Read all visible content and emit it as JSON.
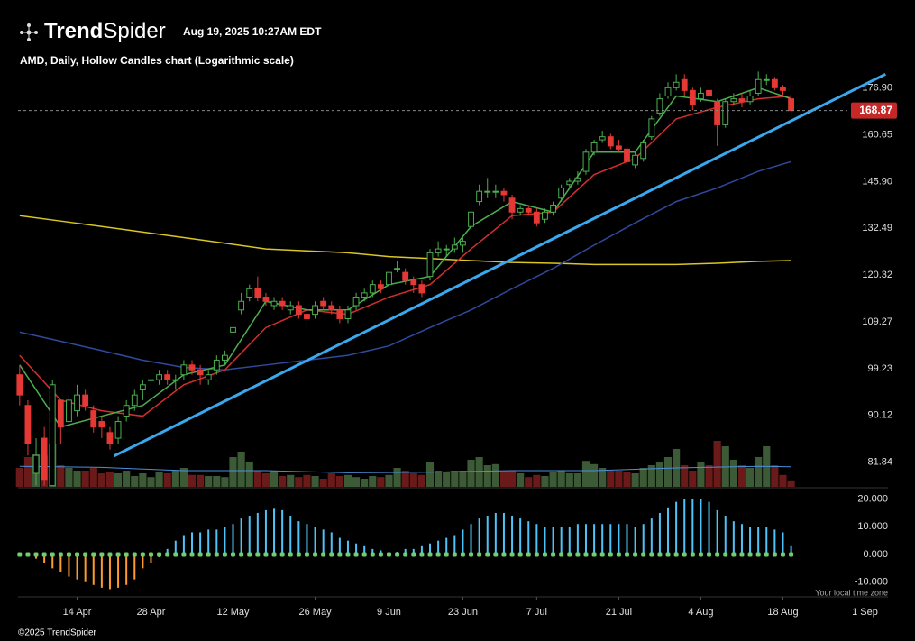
{
  "header": {
    "brand_bold": "Trend",
    "brand_light": "Spider",
    "timestamp": "Aug 19, 2025 10:27AM EDT"
  },
  "footer": {
    "copyright": "©2025 TrendSpider",
    "timezone_note": "Your local time zone"
  },
  "chart_data": {
    "type": "candlestick",
    "title": "AMD, Daily, Hollow Candles chart (Logarithmic scale)",
    "log_scale": true,
    "xlim": [
      -0.2,
      105.8
    ],
    "xticks": [
      {
        "value": 7,
        "label": "14 Apr"
      },
      {
        "value": 16,
        "label": "28 Apr"
      },
      {
        "value": 26,
        "label": "12 May"
      },
      {
        "value": 36,
        "label": "26 May"
      },
      {
        "value": 45,
        "label": "9 Jun"
      },
      {
        "value": 54,
        "label": "23 Jun"
      },
      {
        "value": 63,
        "label": "7 Jul"
      },
      {
        "value": 73,
        "label": "21 Jul"
      },
      {
        "value": 83,
        "label": "4 Aug"
      },
      {
        "value": 93,
        "label": "18 Aug"
      },
      {
        "value": 103,
        "label": "1 Sep"
      }
    ],
    "ylim": [
      77.8,
      189.7
    ],
    "yticks": [
      {
        "value": 176.9,
        "label": "176.90"
      },
      160.65,
      {
        "value": 145.9,
        "label": "145.90"
      },
      132.49,
      120.32,
      109.27,
      99.23,
      90.12,
      81.84
    ],
    "up_color": "#4caf50",
    "down_color": "#e53935",
    "last_price_color": "#c62828",
    "candles": {
      "open": [
        98,
        92,
        80,
        86,
        78,
        93,
        89,
        91,
        94,
        91,
        89,
        87,
        86,
        90,
        92,
        95,
        97,
        97,
        98,
        97,
        98,
        100,
        99,
        97,
        99,
        101,
        107,
        112,
        115,
        117,
        115,
        113,
        114,
        112,
        113,
        111,
        111,
        114,
        113,
        112,
        110,
        113,
        115,
        116,
        118,
        118,
        122,
        121,
        119,
        118,
        120,
        126,
        127,
        127,
        128,
        133,
        140,
        143,
        143,
        143,
        141,
        137,
        138,
        137,
        135,
        137,
        141,
        145,
        146,
        149,
        155,
        159,
        160,
        157,
        156,
        151,
        153,
        160,
        168,
        174,
        177,
        180,
        176,
        173,
        176,
        172,
        164,
        172,
        173,
        172,
        175,
        180,
        180,
        177,
        173
      ],
      "high": [
        100,
        93,
        86,
        88,
        97,
        93,
        94,
        96,
        95,
        92,
        90,
        88,
        90,
        93,
        95,
        97,
        98,
        99,
        99,
        98,
        101,
        101,
        100,
        99,
        102,
        103,
        109,
        116,
        118,
        120,
        116,
        115,
        115,
        114,
        114,
        112,
        114,
        115,
        114,
        113,
        113,
        116,
        117,
        119,
        119,
        122,
        124,
        122,
        120,
        119,
        127,
        129,
        128,
        130,
        130,
        138,
        145,
        147,
        145,
        144,
        142,
        139,
        139,
        138,
        138,
        140,
        145,
        147,
        149,
        156,
        159,
        162,
        161,
        159,
        157,
        155,
        159,
        167,
        175,
        179,
        182,
        182,
        177,
        177,
        178,
        173,
        173,
        175,
        175,
        176,
        183,
        182,
        181,
        178,
        174
      ],
      "low": [
        92,
        83,
        78,
        78,
        78,
        85,
        87,
        90,
        91,
        87,
        86,
        84,
        85,
        89,
        91,
        93,
        95,
        96,
        96,
        95,
        97,
        98,
        96,
        96,
        98,
        100,
        105,
        111,
        114,
        114,
        113,
        112,
        112,
        111,
        110,
        108,
        110,
        112,
        111,
        109,
        109,
        112,
        114,
        115,
        116,
        117,
        121,
        118,
        116,
        115,
        119,
        125,
        125,
        126,
        126,
        132,
        139,
        141,
        141,
        140,
        135,
        136,
        136,
        133,
        134,
        136,
        140,
        144,
        145,
        148,
        154,
        158,
        156,
        155,
        149,
        150,
        152,
        159,
        167,
        173,
        176,
        174,
        169,
        172,
        172,
        157,
        163,
        171,
        170,
        171,
        174,
        178,
        176,
        174,
        167
      ],
      "close": [
        94,
        85,
        83,
        79,
        96,
        88,
        93,
        94,
        92,
        88,
        88,
        85,
        89,
        92,
        94,
        96,
        97,
        98,
        97,
        97,
        100,
        99,
        98,
        98,
        101,
        102,
        108,
        114,
        117,
        115,
        114,
        114,
        113,
        113,
        111,
        110,
        113,
        113,
        112,
        110,
        112,
        115,
        116,
        118,
        117,
        121,
        122,
        119,
        118,
        116,
        126,
        127,
        127,
        128,
        129,
        137,
        143,
        143,
        143,
        142,
        137,
        138,
        137,
        134,
        137,
        139,
        144,
        146,
        147,
        155,
        158,
        160,
        157,
        156,
        152,
        154,
        158,
        166,
        173,
        177,
        179,
        176,
        171,
        175,
        174,
        164,
        172,
        173,
        172,
        174,
        180,
        180,
        177,
        176,
        168.87
      ]
    },
    "lines": [
      {
        "color": "#d9c623",
        "x": [
          0,
          5,
          10,
          15,
          20,
          25,
          30,
          35,
          40,
          45,
          50,
          55,
          60,
          65,
          70,
          75,
          80,
          85,
          90,
          94
        ],
        "values": [
          136,
          134.5,
          133,
          131.5,
          130,
          128.5,
          127,
          126.5,
          126,
          125,
          124.5,
          124,
          123.5,
          123.3,
          123,
          123,
          123,
          123.3,
          123.8,
          124
        ]
      },
      {
        "color": "#2f4a9e",
        "x": [
          0,
          5,
          10,
          15,
          20,
          25,
          30,
          35,
          40,
          45,
          50,
          55,
          60,
          65,
          70,
          75,
          80,
          85,
          90,
          94
        ],
        "values": [
          107,
          105,
          103,
          101,
          99.5,
          99,
          100,
          101,
          102,
          104,
          108,
          112,
          117,
          122,
          128,
          134,
          140,
          144,
          149,
          152
        ]
      },
      {
        "color": "#d32f2f",
        "x": [
          0,
          5,
          10,
          15,
          20,
          25,
          30,
          35,
          40,
          45,
          50,
          55,
          60,
          65,
          70,
          75,
          80,
          85,
          90,
          94
        ],
        "values": [
          102,
          93,
          91,
          90,
          96,
          99,
          108,
          112,
          111,
          115,
          118,
          127,
          136,
          137,
          148,
          153,
          166,
          170,
          173,
          174
        ]
      },
      {
        "color": "#4caf50",
        "x": [
          0,
          5,
          10,
          15,
          20,
          25,
          30,
          35,
          40,
          45,
          50,
          55,
          60,
          65,
          70,
          75,
          80,
          85,
          90,
          94
        ],
        "values": [
          100,
          88,
          90,
          92,
          98,
          100,
          114,
          112,
          112,
          118,
          120,
          133,
          140,
          137,
          155,
          155,
          174,
          172,
          177,
          173
        ]
      }
    ],
    "trendline": {
      "color": "#3aa8ee",
      "x": [
        11.5,
        105.5
      ],
      "values": [
        82.9,
        182
      ]
    },
    "volume": {
      "ylim": [
        0,
        150
      ],
      "up_color": "#3d5a36",
      "down_color": "#6b1a1a",
      "values": [
        35,
        55,
        60,
        58,
        80,
        40,
        35,
        30,
        30,
        35,
        25,
        28,
        25,
        30,
        20,
        25,
        18,
        28,
        25,
        30,
        35,
        22,
        22,
        20,
        20,
        18,
        55,
        65,
        45,
        30,
        25,
        30,
        20,
        22,
        18,
        22,
        20,
        15,
        25,
        20,
        22,
        18,
        15,
        20,
        18,
        22,
        35,
        30,
        25,
        22,
        45,
        30,
        28,
        30,
        30,
        50,
        55,
        40,
        42,
        30,
        30,
        25,
        18,
        22,
        20,
        28,
        30,
        25,
        25,
        48,
        42,
        35,
        30,
        30,
        28,
        25,
        35,
        40,
        45,
        55,
        70,
        40,
        30,
        45,
        40,
        85,
        75,
        50,
        40,
        35,
        55,
        75,
        40,
        22,
        12
      ],
      "ma": {
        "color": "#4a90d9",
        "x": [
          0,
          10,
          20,
          30,
          40,
          50,
          60,
          70,
          80,
          90,
          94
        ],
        "values": [
          38,
          36,
          30,
          30,
          26,
          27,
          30,
          30,
          35,
          38,
          37
        ]
      }
    },
    "oscillator": {
      "ylim": [
        -15.3,
        22.8
      ],
      "yticks": [
        {
          "value": 20,
          "label": "20.000"
        },
        {
          "value": 10,
          "label": "10.000"
        },
        {
          "value": 0,
          "label": "0.000"
        },
        {
          "value": -10,
          "label": "-10.000"
        }
      ],
      "pos_color": "#4fc3f7",
      "neg_color": "#ff9a2e",
      "dot_color": "#6fcf6f",
      "values": [
        0,
        -0.5,
        -1.5,
        -3,
        -5,
        -6.5,
        -8,
        -9,
        -10,
        -11,
        -12,
        -12.5,
        -12,
        -11,
        -9,
        -5,
        -3,
        -1,
        2,
        5,
        7,
        8,
        8,
        9,
        9,
        10,
        11,
        13,
        14,
        15,
        16,
        16.5,
        16,
        14,
        12,
        11,
        10,
        9,
        8,
        6,
        5,
        4,
        3,
        2,
        1.5,
        0.5,
        1,
        2,
        2,
        3,
        4,
        5,
        6,
        7,
        9,
        11,
        13,
        14,
        15,
        15,
        14,
        13,
        12,
        11,
        10,
        10,
        10,
        10,
        11,
        11,
        11,
        11,
        11,
        11,
        11,
        10,
        11,
        13,
        15,
        17,
        19,
        20,
        20,
        20,
        19,
        16,
        14,
        12,
        11,
        10,
        10,
        10,
        9,
        8,
        3
      ]
    }
  }
}
